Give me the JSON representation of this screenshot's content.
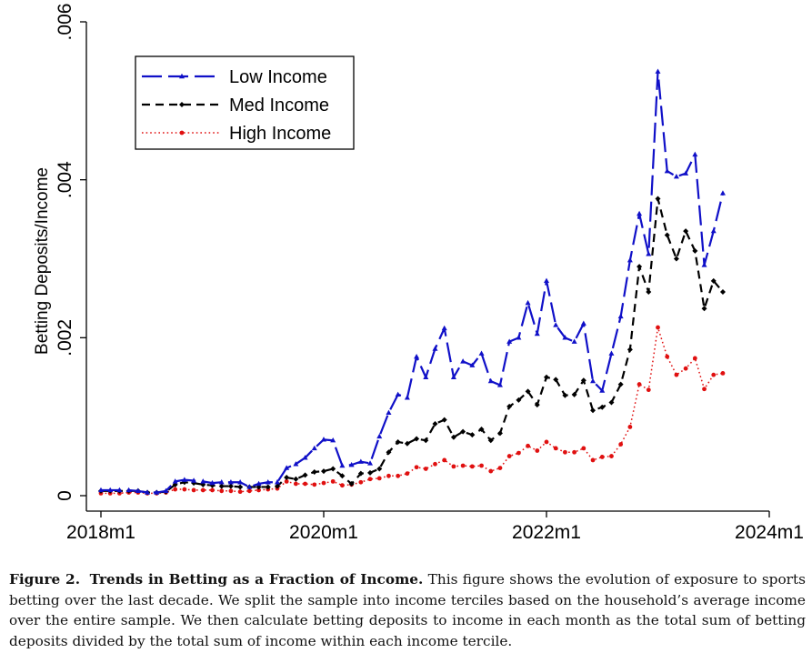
{
  "chart_data": {
    "type": "line",
    "title": "",
    "xlabel": "",
    "ylabel": "Betting Deposits/Income",
    "xlim": [
      "2018m1",
      "2024m1"
    ],
    "ylim": [
      0,
      0.006
    ],
    "x_ticks": [
      "2018m1",
      "2020m1",
      "2022m1",
      "2024m1"
    ],
    "y_ticks": [
      "0",
      ".002",
      ".004",
      ".006"
    ],
    "y_tick_values": [
      0,
      0.002,
      0.004,
      0.006
    ],
    "grid": false,
    "legend_position": "top-left",
    "x": [
      "2018m1",
      "2018m2",
      "2018m3",
      "2018m4",
      "2018m5",
      "2018m6",
      "2018m7",
      "2018m8",
      "2018m9",
      "2018m10",
      "2018m11",
      "2018m12",
      "2019m1",
      "2019m2",
      "2019m3",
      "2019m4",
      "2019m5",
      "2019m6",
      "2019m7",
      "2019m8",
      "2019m9",
      "2019m10",
      "2019m11",
      "2019m12",
      "2020m1",
      "2020m2",
      "2020m3",
      "2020m4",
      "2020m5",
      "2020m6",
      "2020m7",
      "2020m8",
      "2020m9",
      "2020m10",
      "2020m11",
      "2020m12",
      "2021m1",
      "2021m2",
      "2021m3",
      "2021m4",
      "2021m5",
      "2021m6",
      "2021m7",
      "2021m8",
      "2021m9",
      "2021m10",
      "2021m11",
      "2021m12",
      "2022m1",
      "2022m2",
      "2022m3",
      "2022m4",
      "2022m5",
      "2022m6",
      "2022m7",
      "2022m8",
      "2022m9",
      "2022m10",
      "2022m11",
      "2022m12",
      "2023m1",
      "2023m2",
      "2023m3",
      "2023m4",
      "2023m5",
      "2023m6",
      "2023m7",
      "2023m8"
    ],
    "series": [
      {
        "name": "Low Income",
        "color": "#1010c8",
        "style": "long-dash",
        "values": [
          7e-05,
          7e-05,
          7e-05,
          7e-05,
          6e-05,
          4e-05,
          4e-05,
          6e-05,
          0.00018,
          0.0002,
          0.00019,
          0.00018,
          0.00016,
          0.00017,
          0.00017,
          0.00017,
          0.00011,
          0.00015,
          0.00017,
          0.00017,
          0.00035,
          0.0004,
          0.00048,
          0.0006,
          0.00071,
          0.0007,
          0.00038,
          0.00039,
          0.00043,
          0.00041,
          0.00075,
          0.00105,
          0.00128,
          0.00124,
          0.00176,
          0.0015,
          0.00186,
          0.00212,
          0.0015,
          0.0017,
          0.00165,
          0.0018,
          0.00145,
          0.0014,
          0.00195,
          0.002,
          0.00244,
          0.00205,
          0.00272,
          0.00216,
          0.002,
          0.00195,
          0.00218,
          0.00145,
          0.00133,
          0.0018,
          0.00227,
          0.00298,
          0.00357,
          0.00306,
          0.00537,
          0.00411,
          0.00404,
          0.00408,
          0.00432,
          0.00292,
          0.00335,
          0.00383
        ]
      },
      {
        "name": "Med Income",
        "color": "#000000",
        "style": "short-dash",
        "values": [
          6e-05,
          6e-05,
          6e-05,
          6e-05,
          6e-05,
          4e-05,
          4e-05,
          5e-05,
          0.00014,
          0.00017,
          0.00016,
          0.00014,
          0.00013,
          0.00012,
          0.00012,
          0.00011,
          0.00011,
          0.00011,
          0.00011,
          0.00012,
          0.00023,
          0.00021,
          0.00026,
          0.0003,
          0.00031,
          0.00034,
          0.00025,
          0.00015,
          0.00028,
          0.00029,
          0.00034,
          0.00055,
          0.00068,
          0.00066,
          0.00072,
          0.0007,
          0.00091,
          0.00096,
          0.00074,
          0.00081,
          0.00077,
          0.00084,
          0.0007,
          0.00079,
          0.00113,
          0.00121,
          0.00132,
          0.00115,
          0.0015,
          0.00147,
          0.00127,
          0.00128,
          0.00146,
          0.00108,
          0.00112,
          0.00118,
          0.00141,
          0.00185,
          0.0029,
          0.00258,
          0.00376,
          0.0033,
          0.003,
          0.00335,
          0.0031,
          0.00237,
          0.00272,
          0.00258
        ]
      },
      {
        "name": "High Income",
        "color": "#e01010",
        "style": "dotted",
        "values": [
          3e-05,
          3e-05,
          3e-05,
          4e-05,
          4e-05,
          3e-05,
          3e-05,
          4e-05,
          8e-05,
          8e-05,
          7e-05,
          7e-05,
          7e-05,
          6e-05,
          6e-05,
          5e-05,
          6e-05,
          7e-05,
          8e-05,
          9e-05,
          0.00018,
          0.00015,
          0.00015,
          0.00014,
          0.00016,
          0.00018,
          0.00013,
          0.00014,
          0.00017,
          0.00021,
          0.00022,
          0.00025,
          0.00025,
          0.00028,
          0.00036,
          0.00034,
          0.0004,
          0.00045,
          0.00037,
          0.00038,
          0.00037,
          0.00038,
          0.00031,
          0.00035,
          0.0005,
          0.00054,
          0.00063,
          0.00057,
          0.00068,
          0.0006,
          0.00055,
          0.00055,
          0.0006,
          0.00045,
          0.00049,
          0.0005,
          0.00065,
          0.00087,
          0.00141,
          0.00134,
          0.00213,
          0.00176,
          0.00153,
          0.00161,
          0.00174,
          0.00135,
          0.00153,
          0.00155
        ]
      }
    ]
  },
  "caption": {
    "label": "Figure 2.",
    "title": "Trends in Betting as a Fraction of Income.",
    "text": "This figure shows the evolution of exposure to sports betting over the last decade. We split the sample into income terciles based on the household’s average income over the entire sample. We then calculate betting deposits to income in each month as the total sum of betting deposits divided by the total sum of income within each income tercile."
  }
}
